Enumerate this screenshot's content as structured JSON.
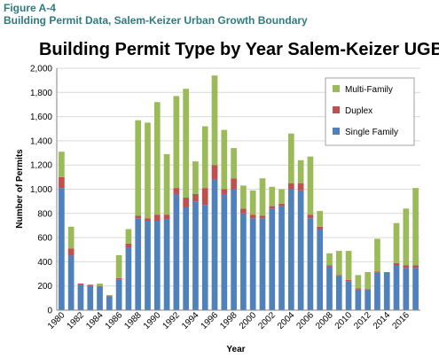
{
  "figure": {
    "label": "Figure A-4",
    "subtitle": "Building Permit Data, Salem-Keizer Urban Growth Boundary"
  },
  "chart_data": {
    "type": "bar",
    "stacked": true,
    "title": "Building Permit Type by Year Salem-Keizer UGB",
    "xlabel": "Year",
    "ylabel": "Number of Permits",
    "ylim": [
      0,
      2000
    ],
    "yticks": [
      0,
      200,
      400,
      600,
      800,
      1000,
      1200,
      1400,
      1600,
      1800,
      2000
    ],
    "ytick_labels": [
      "0",
      "200",
      "400",
      "600",
      "800",
      "1,000",
      "1,200",
      "1,400",
      "1,600",
      "1,800",
      "2,000"
    ],
    "grid": "horizontal",
    "legend_position": "top-right",
    "categories": [
      1980,
      1981,
      1982,
      1983,
      1984,
      1985,
      1986,
      1987,
      1988,
      1989,
      1990,
      1991,
      1992,
      1993,
      1994,
      1995,
      1996,
      1997,
      1998,
      1999,
      2000,
      2001,
      2002,
      2003,
      2004,
      2005,
      2006,
      2007,
      2008,
      2009,
      2010,
      2011,
      2012,
      2013,
      2014,
      2015,
      2016,
      2017
    ],
    "xtick_labels": [
      "1980",
      "1982",
      "1984",
      "1986",
      "1988",
      "1990",
      "1992",
      "1994",
      "1996",
      "1998",
      "2000",
      "2002",
      "2004",
      "2006",
      "2008",
      "2010",
      "2012",
      "2014",
      "2016"
    ],
    "series": [
      {
        "name": "Single Family",
        "color": "#4f81bd",
        "values": [
          1010,
          450,
          210,
          200,
          195,
          115,
          255,
          520,
          760,
          740,
          740,
          750,
          960,
          850,
          900,
          870,
          1080,
          960,
          1000,
          800,
          760,
          760,
          840,
          860,
          1000,
          990,
          760,
          670,
          360,
          280,
          240,
          170,
          170,
          310,
          310,
          370,
          350,
          350
        ]
      },
      {
        "name": "Duplex",
        "color": "#c0504d",
        "values": [
          90,
          60,
          10,
          10,
          5,
          5,
          10,
          30,
          20,
          20,
          50,
          40,
          50,
          80,
          60,
          140,
          120,
          40,
          90,
          40,
          30,
          20,
          20,
          20,
          50,
          60,
          30,
          20,
          10,
          10,
          10,
          10,
          5,
          10,
          5,
          20,
          20,
          20
        ]
      },
      {
        "name": "Multi-Family",
        "color": "#9bbb59",
        "values": [
          210,
          180,
          0,
          0,
          20,
          5,
          190,
          120,
          790,
          790,
          930,
          500,
          760,
          900,
          270,
          510,
          740,
          490,
          250,
          190,
          200,
          310,
          160,
          120,
          410,
          190,
          480,
          130,
          100,
          200,
          240,
          110,
          140,
          270,
          0,
          330,
          470,
          640
        ]
      }
    ]
  }
}
